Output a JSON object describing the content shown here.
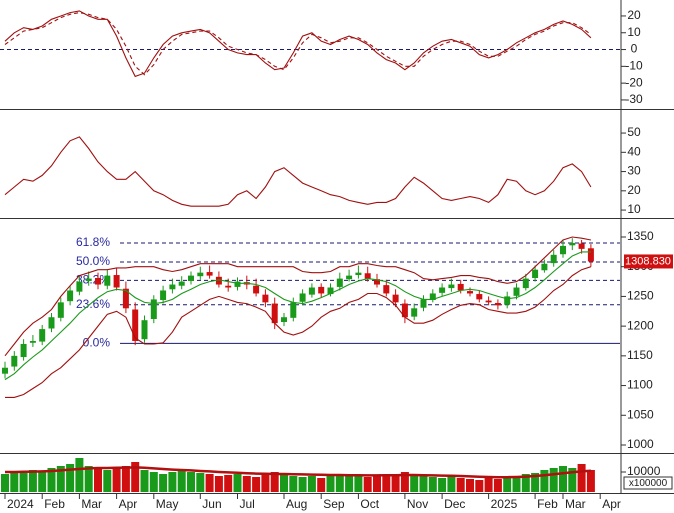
{
  "chart_data": [
    {
      "type": "line",
      "ylim": [
        -34.8,
        29.5
      ],
      "yticks": [
        20,
        10,
        0,
        -10,
        -20,
        -30
      ],
      "hline": 0,
      "series": [
        {
          "color": "#a01010",
          "dash": false,
          "values": [
            5,
            10,
            13,
            12,
            14,
            18,
            20,
            22,
            23,
            20,
            18,
            18,
            8,
            -5,
            -16,
            -14,
            -5,
            3,
            8,
            10,
            11,
            12,
            10,
            5,
            0,
            -2,
            -3,
            -3,
            -8,
            -12,
            -11,
            -2,
            8,
            10,
            5,
            3,
            6,
            8,
            6,
            3,
            -2,
            -6,
            -8,
            -12,
            -8,
            -2,
            2,
            5,
            6,
            4,
            2,
            -3,
            -5,
            -3,
            0,
            4,
            7,
            10,
            12,
            15,
            17,
            15,
            12,
            7,
            null
          ]
        },
        {
          "color": "#a01010",
          "dash": true,
          "values": [
            3,
            7,
            11,
            12,
            13,
            16,
            19,
            21,
            22,
            21,
            19,
            18,
            12,
            2,
            -10,
            -15,
            -9,
            0,
            5,
            9,
            10,
            11,
            11,
            7,
            2,
            0,
            -2,
            -3,
            -6,
            -10,
            -12,
            -5,
            4,
            9,
            7,
            4,
            5,
            7,
            7,
            4,
            0,
            -4,
            -7,
            -10,
            -10,
            -4,
            0,
            3,
            5,
            5,
            3,
            -1,
            -4,
            -4,
            -1,
            2,
            6,
            9,
            11,
            14,
            16,
            16,
            13,
            9,
            null
          ]
        }
      ]
    },
    {
      "type": "line",
      "ylim": [
        6.4,
        59.9
      ],
      "yticks": [
        50,
        40,
        30,
        20,
        10
      ],
      "series": [
        {
          "color": "#a01010",
          "dash": false,
          "values": [
            18,
            22,
            26,
            25,
            28,
            33,
            40,
            46,
            48,
            42,
            35,
            30,
            26,
            26,
            30,
            25,
            20,
            18,
            15,
            13,
            12,
            12,
            12,
            12,
            13,
            18,
            20,
            16,
            22,
            30,
            32,
            28,
            24,
            22,
            20,
            18,
            17,
            15,
            14,
            13,
            14,
            14,
            16,
            22,
            27,
            24,
            20,
            16,
            15,
            16,
            17,
            16,
            14,
            18,
            26,
            25,
            20,
            18,
            20,
            25,
            32,
            34,
            30,
            22,
            null
          ]
        }
      ]
    },
    {
      "type": "candlestick",
      "ylim": [
        988.2,
        1378.6
      ],
      "yticks": [
        1350,
        1300,
        1250,
        1200,
        1150,
        1100,
        1050,
        1000
      ],
      "up_color": "#1a9a1a",
      "down_color": "#d01010",
      "open": [
        1120,
        1132,
        1148,
        1172,
        1174,
        1196,
        1214,
        1242,
        1258,
        1276,
        1281,
        1268,
        1286,
        1263,
        1228,
        1178,
        1212,
        1244,
        1262,
        1268,
        1276,
        1284,
        1291,
        1283,
        1268,
        1266,
        1274,
        1268,
        1253,
        1238,
        1207,
        1214,
        1241,
        1253,
        1266,
        1254,
        1266,
        1279,
        1286,
        1289,
        1279,
        1269,
        1253,
        1238,
        1216,
        1231,
        1244,
        1256,
        1264,
        1271,
        1259,
        1254,
        1243,
        1239,
        1236,
        1251,
        1264,
        1281,
        1294,
        1306,
        1321,
        1336,
        1339,
        1331,
        null
      ],
      "high": [
        1140,
        1158,
        1178,
        1185,
        1202,
        1222,
        1248,
        1268,
        1285,
        1292,
        1290,
        1295,
        1298,
        1275,
        1240,
        1218,
        1252,
        1268,
        1280,
        1284,
        1292,
        1300,
        1302,
        1292,
        1280,
        1282,
        1285,
        1280,
        1262,
        1248,
        1222,
        1248,
        1262,
        1272,
        1272,
        1272,
        1290,
        1295,
        1302,
        1300,
        1288,
        1278,
        1262,
        1245,
        1238,
        1252,
        1262,
        1272,
        1280,
        1278,
        1265,
        1260,
        1250,
        1245,
        1258,
        1272,
        1288,
        1302,
        1312,
        1328,
        1345,
        1348,
        1345,
        1338,
        null
      ],
      "low": [
        1112,
        1125,
        1142,
        1165,
        1168,
        1190,
        1208,
        1235,
        1252,
        1268,
        1262,
        1262,
        1260,
        1222,
        1168,
        1172,
        1205,
        1238,
        1255,
        1262,
        1270,
        1278,
        1280,
        1265,
        1258,
        1260,
        1262,
        1250,
        1232,
        1195,
        1200,
        1208,
        1235,
        1248,
        1248,
        1250,
        1260,
        1275,
        1280,
        1275,
        1265,
        1250,
        1232,
        1205,
        1210,
        1225,
        1240,
        1250,
        1258,
        1255,
        1250,
        1240,
        1235,
        1228,
        1230,
        1245,
        1260,
        1275,
        1290,
        1300,
        1315,
        1328,
        1322,
        1300,
        null
      ],
      "close": [
        1130,
        1150,
        1170,
        1175,
        1195,
        1215,
        1240,
        1260,
        1275,
        1280,
        1270,
        1285,
        1265,
        1230,
        1175,
        1210,
        1245,
        1260,
        1270,
        1275,
        1285,
        1290,
        1285,
        1270,
        1265,
        1275,
        1270,
        1255,
        1240,
        1205,
        1215,
        1240,
        1255,
        1265,
        1255,
        1265,
        1280,
        1285,
        1290,
        1280,
        1270,
        1255,
        1240,
        1215,
        1230,
        1245,
        1255,
        1265,
        1270,
        1260,
        1255,
        1245,
        1240,
        1235,
        1250,
        1265,
        1280,
        1295,
        1305,
        1320,
        1335,
        1340,
        1330,
        1308.83,
        null
      ],
      "series": [
        {
          "color": "#a01010",
          "values": [
            1150,
            1170,
            1190,
            1205,
            1215,
            1228,
            1250,
            1268,
            1285,
            1290,
            1295,
            1295,
            1298,
            1298,
            1300,
            1300,
            1300,
            1295,
            1292,
            1295,
            1300,
            1305,
            1305,
            1305,
            1305,
            1300,
            1300,
            1300,
            1300,
            1300,
            1300,
            1300,
            1292,
            1290,
            1290,
            1292,
            1300,
            1300,
            1305,
            1305,
            1302,
            1300,
            1300,
            1295,
            1290,
            1280,
            1278,
            1280,
            1282,
            1285,
            1285,
            1282,
            1280,
            1275,
            1272,
            1275,
            1285,
            1300,
            1315,
            1330,
            1345,
            1350,
            1348,
            1345,
            null
          ]
        },
        {
          "color": "#1a9a1a",
          "values": [
            1110,
            1120,
            1135,
            1148,
            1160,
            1175,
            1190,
            1205,
            1222,
            1235,
            1248,
            1258,
            1262,
            1260,
            1248,
            1240,
            1238,
            1240,
            1245,
            1255,
            1262,
            1270,
            1275,
            1278,
            1275,
            1272,
            1272,
            1270,
            1265,
            1255,
            1245,
            1240,
            1238,
            1242,
            1248,
            1255,
            1262,
            1270,
            1276,
            1280,
            1278,
            1275,
            1268,
            1258,
            1250,
            1245,
            1245,
            1250,
            1255,
            1260,
            1262,
            1260,
            1255,
            1250,
            1246,
            1248,
            1255,
            1265,
            1278,
            1292,
            1305,
            1318,
            1325,
            1325,
            null
          ]
        },
        {
          "color": "#a01010",
          "values": [
            1080,
            1080,
            1085,
            1095,
            1105,
            1120,
            1130,
            1145,
            1160,
            1180,
            1200,
            1220,
            1225,
            1215,
            1180,
            1170,
            1170,
            1172,
            1190,
            1215,
            1225,
            1235,
            1245,
            1250,
            1245,
            1240,
            1238,
            1232,
            1225,
            1205,
            1190,
            1185,
            1190,
            1200,
            1215,
            1225,
            1230,
            1240,
            1245,
            1255,
            1255,
            1248,
            1235,
            1215,
            1205,
            1205,
            1210,
            1220,
            1228,
            1235,
            1238,
            1236,
            1228,
            1225,
            1222,
            1222,
            1225,
            1232,
            1245,
            1260,
            1270,
            1285,
            1295,
            1300,
            null
          ]
        }
      ],
      "levels": [
        {
          "label": "61.8%",
          "value": 1340
        },
        {
          "label": "50.0%",
          "value": 1308
        },
        {
          "label": "38.2%",
          "value": 1277
        },
        {
          "label": "23.6%",
          "value": 1236
        },
        {
          "label": "0.0%",
          "value": 1171
        }
      ],
      "price_marker": {
        "value": 1308.83,
        "label": "1308.830"
      }
    },
    {
      "type": "bar",
      "ylim": [
        0,
        18500
      ],
      "yticks": [
        10000
      ],
      "unit_label": "x100000",
      "values": [
        9000,
        10000,
        9500,
        11000,
        10000,
        12000,
        13000,
        14000,
        17000,
        13000,
        12000,
        11000,
        12000,
        13000,
        15000,
        11000,
        10000,
        9000,
        10000,
        11000,
        10000,
        9500,
        9000,
        8000,
        8500,
        9000,
        8000,
        7500,
        9000,
        10000,
        9500,
        8000,
        7500,
        8000,
        7000,
        8000,
        9000,
        8500,
        8000,
        7500,
        8000,
        9000,
        8500,
        10000,
        9000,
        8000,
        7500,
        7000,
        8000,
        7000,
        6500,
        6000,
        7000,
        6500,
        7000,
        8000,
        9000,
        9500,
        11000,
        12000,
        13000,
        12000,
        14000,
        11000,
        null
      ],
      "series": [
        {
          "color": "#b01010",
          "values": [
            10000,
            10000,
            10100,
            10200,
            10300,
            10500,
            10800,
            11200,
            11500,
            11800,
            12000,
            12000,
            12100,
            12200,
            12300,
            12100,
            11800,
            11500,
            11200,
            11000,
            10800,
            10500,
            10300,
            10000,
            9800,
            9600,
            9400,
            9200,
            9100,
            9000,
            9000,
            8900,
            8800,
            8700,
            8600,
            8500,
            8500,
            8400,
            8400,
            8300,
            8300,
            8400,
            8400,
            8500,
            8500,
            8400,
            8300,
            8200,
            8100,
            8000,
            7800,
            7600,
            7500,
            7400,
            7400,
            7500,
            7700,
            8000,
            8400,
            8900,
            9400,
            9900,
            10300,
            10600,
            null
          ]
        }
      ],
      "categories": [
        "2024",
        null,
        null,
        null,
        "Feb",
        null,
        null,
        null,
        "Mar",
        null,
        null,
        null,
        "Apr",
        null,
        null,
        null,
        "May",
        null,
        null,
        null,
        null,
        "Jun",
        null,
        null,
        null,
        "Jul",
        null,
        null,
        null,
        null,
        "Aug",
        null,
        null,
        null,
        "Sep",
        null,
        null,
        null,
        "Oct",
        null,
        null,
        null,
        null,
        "Nov",
        null,
        null,
        null,
        "Dec",
        null,
        null,
        null,
        null,
        "2025",
        null,
        null,
        null,
        null,
        "Feb",
        null,
        null,
        "Mar",
        null,
        null,
        null,
        "Apr"
      ]
    }
  ]
}
